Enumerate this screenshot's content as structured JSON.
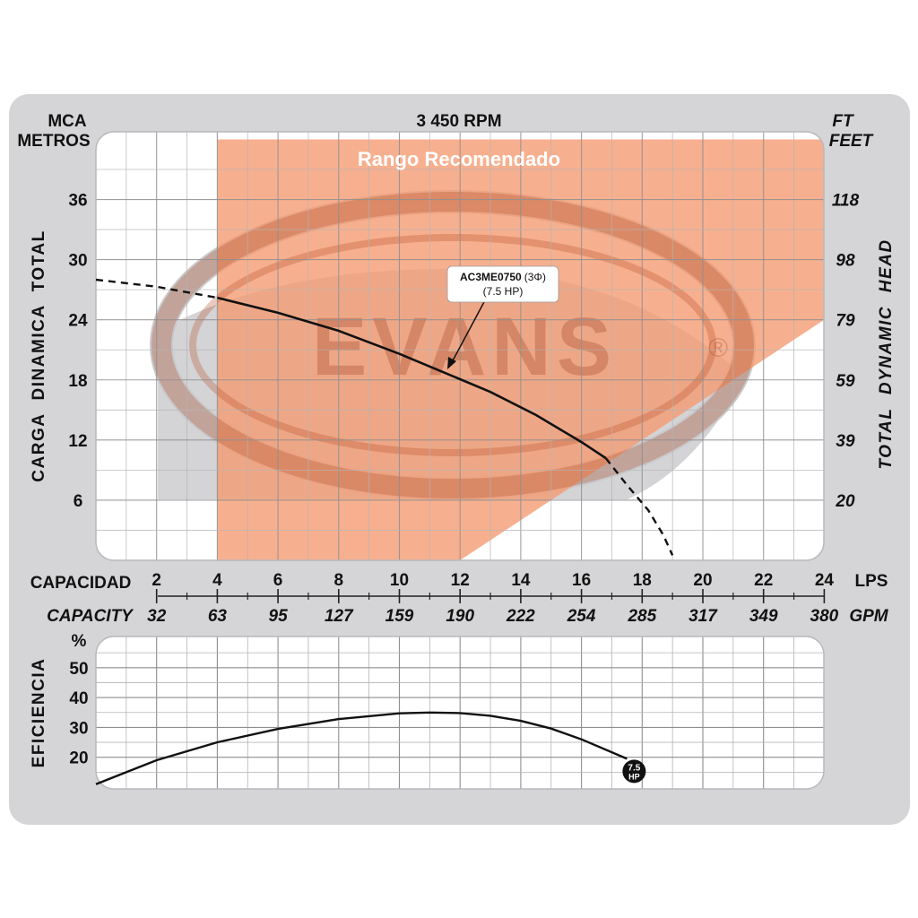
{
  "chart_data": [
    {
      "type": "line",
      "title": "3 450 RPM",
      "banner": "Rango Recomendado",
      "watermark": "EVANS",
      "ylabel": "CARGA DINAMICA TOTAL",
      "yunit": "MCA",
      "yunit2": "METROS",
      "ylabel_right": "TOTAL DYNAMIC HEAD",
      "yunit_right": "FT",
      "yunit2_right": "FEET",
      "xlabel": "CAPACIDAD",
      "xunit": "LPS",
      "xlabel_alt": "CAPACITY",
      "xunit_alt": "GPM",
      "xlim": [
        0,
        24
      ],
      "ylim": [
        0,
        40
      ],
      "grid": true,
      "x_ticks": [
        "2",
        "4",
        "6",
        "8",
        "10",
        "12",
        "14",
        "16",
        "18",
        "20",
        "22",
        "24"
      ],
      "x_ticks_alt": [
        "32",
        "63",
        "95",
        "127",
        "159",
        "190",
        "222",
        "254",
        "285",
        "317",
        "349",
        "380"
      ],
      "y_ticks": [
        "6",
        "12",
        "18",
        "24",
        "30",
        "36"
      ],
      "y_ticks_right": [
        "20",
        "39",
        "59",
        "79",
        "98",
        "118"
      ],
      "recommended_range": {
        "polygon": [
          [
            4,
            0
          ],
          [
            4,
            42
          ],
          [
            24,
            42
          ],
          [
            24,
            24
          ],
          [
            12,
            0
          ]
        ]
      },
      "series": [
        {
          "model": "AC3ME0750",
          "phase": "(3Φ)",
          "power": "(7.5 HP)",
          "x": [
            0,
            2,
            4,
            6,
            8,
            10,
            11.5,
            13,
            14.5,
            16,
            16.8,
            17.5,
            18.2,
            18.7,
            19.0
          ],
          "y": [
            28,
            27.3,
            26.2,
            24.7,
            22.9,
            20.6,
            18.7,
            16.8,
            14.5,
            11.8,
            10.2,
            7.5,
            5.0,
            2.5,
            0.5
          ],
          "dashed_below_x": 4,
          "dashed_above_x": 16.8
        }
      ]
    },
    {
      "type": "line",
      "ylabel": "EFICIENCIA",
      "yunit": "%",
      "y_ticks": [
        "20",
        "30",
        "40",
        "50"
      ],
      "xlim": [
        0,
        24
      ],
      "ylim": [
        10,
        55
      ],
      "grid": true,
      "series": [
        {
          "x": [
            0,
            2,
            4,
            6,
            8,
            10,
            11,
            12,
            13,
            14,
            15,
            16,
            17.5
          ],
          "y": [
            11,
            19,
            25,
            29.5,
            32.8,
            34.7,
            35,
            34.8,
            33.9,
            32.2,
            29.6,
            26.0,
            19.5
          ],
          "end_badge": [
            "7.5",
            "HP"
          ]
        }
      ]
    }
  ]
}
